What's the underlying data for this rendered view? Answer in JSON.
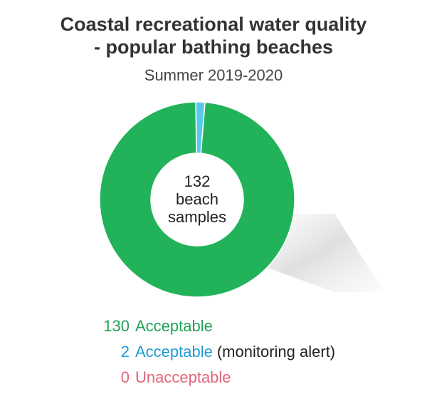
{
  "title_line1": "Coastal recreational water quality",
  "title_line2": "- popular bathing beaches",
  "subtitle": "Summer 2019-2020",
  "center_label": [
    "132",
    "beach",
    "samples"
  ],
  "chart_data": {
    "type": "pie",
    "title": "Coastal recreational water quality - popular bathing beaches",
    "subtitle": "Summer 2019-2020",
    "total": 132,
    "categories": [
      "Acceptable",
      "Acceptable (monitoring alert)",
      "Unacceptable"
    ],
    "values": [
      130,
      2,
      0
    ],
    "colors": [
      "#22b35a",
      "#5bc8ea",
      "#e2657a"
    ],
    "donut": true,
    "center_text": "132 beach samples",
    "legend": [
      {
        "value": "130",
        "label": "Acceptable",
        "note": "",
        "color": "#22a257"
      },
      {
        "value": "2",
        "label": "Acceptable",
        "note": "(monitoring alert)",
        "color": "#1e9ad6"
      },
      {
        "value": "0",
        "label": "Unacceptable",
        "note": "",
        "color": "#e2657a"
      }
    ]
  }
}
